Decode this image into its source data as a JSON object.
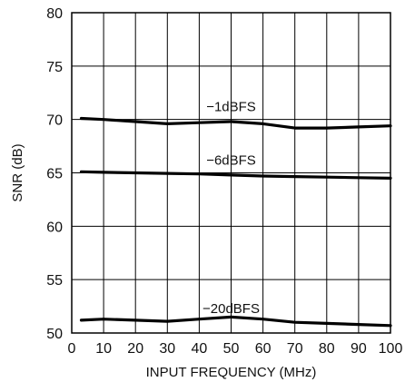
{
  "chart_data": {
    "type": "line",
    "title": "",
    "xlabel": "INPUT FREQUENCY (MHz)",
    "ylabel": "SNR (dB)",
    "xlim": [
      0,
      100
    ],
    "ylim": [
      50,
      80
    ],
    "xticks": [
      0,
      10,
      20,
      30,
      40,
      50,
      60,
      70,
      80,
      90,
      100
    ],
    "yticks": [
      50,
      55,
      60,
      65,
      70,
      75,
      80
    ],
    "grid": true,
    "series": [
      {
        "name": "−1dBFS",
        "x": [
          3,
          10,
          20,
          30,
          40,
          50,
          60,
          70,
          80,
          90,
          100
        ],
        "y": [
          70.1,
          70.0,
          69.8,
          69.6,
          69.7,
          69.8,
          69.6,
          69.2,
          69.2,
          69.3,
          69.4
        ],
        "label_at": [
          50,
          71.2
        ]
      },
      {
        "name": "−6dBFS",
        "x": [
          3,
          10,
          20,
          30,
          40,
          50,
          60,
          70,
          80,
          90,
          100
        ],
        "y": [
          65.1,
          65.05,
          65.0,
          64.95,
          64.9,
          64.8,
          64.7,
          64.65,
          64.6,
          64.55,
          64.5
        ],
        "label_at": [
          50,
          66.2
        ]
      },
      {
        "name": "−20dBFS",
        "x": [
          3,
          10,
          20,
          30,
          40,
          50,
          60,
          70,
          80,
          90,
          100
        ],
        "y": [
          51.2,
          51.3,
          51.2,
          51.1,
          51.3,
          51.5,
          51.3,
          51.0,
          50.9,
          50.8,
          50.7
        ],
        "label_at": [
          50,
          52.3
        ]
      }
    ]
  }
}
